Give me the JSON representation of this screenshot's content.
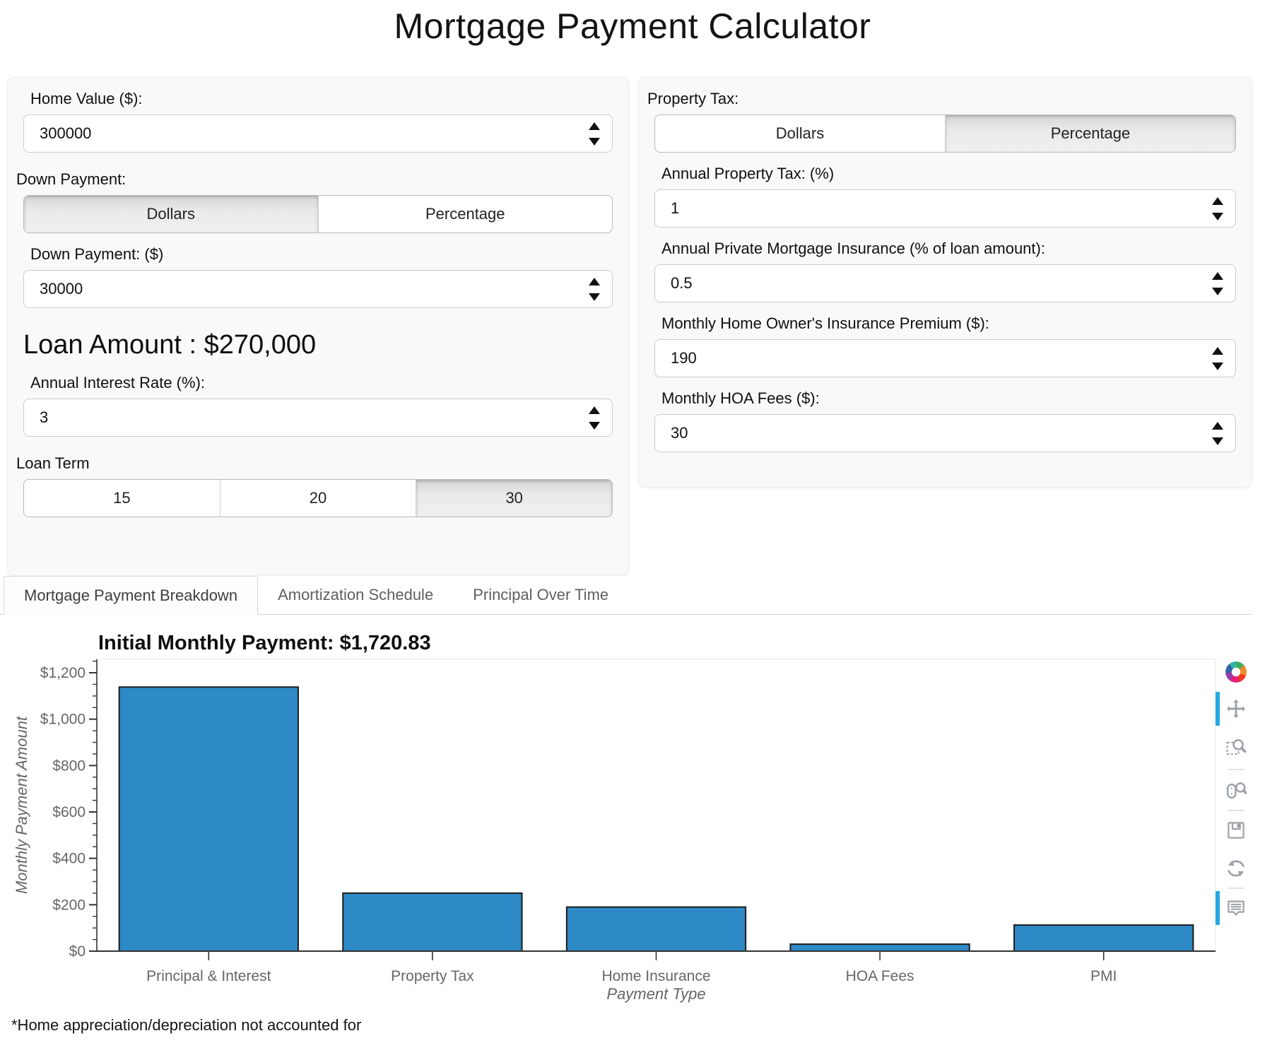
{
  "page": {
    "title": "Mortgage Payment Calculator",
    "footnote": "*Home appreciation/depreciation not accounted for"
  },
  "left_panel": {
    "home_value_label": "Home Value ($):",
    "home_value": "300000",
    "down_payment_section_label": "Down Payment:",
    "down_payment_mode": {
      "options": [
        "Dollars",
        "Percentage"
      ],
      "selected": "Dollars"
    },
    "down_payment_label": "Down Payment: ($)",
    "down_payment": "30000",
    "loan_amount_text": "Loan Amount : $270,000",
    "interest_rate_label": "Annual Interest Rate (%):",
    "interest_rate": "3",
    "loan_term_label": "Loan Term",
    "loan_term": {
      "options": [
        "15",
        "20",
        "30"
      ],
      "selected": "30"
    }
  },
  "right_panel": {
    "property_tax_section_label": "Property Tax:",
    "property_tax_mode": {
      "options": [
        "Dollars",
        "Percentage"
      ],
      "selected": "Percentage"
    },
    "annual_property_tax_label": "Annual Property Tax: (%)",
    "annual_property_tax": "1",
    "pmi_label": "Annual Private Mortgage Insurance (% of loan amount):",
    "pmi": "0.5",
    "home_insurance_label": "Monthly Home Owner's Insurance Premium ($):",
    "home_insurance": "190",
    "hoa_label": "Monthly HOA Fees ($):",
    "hoa": "30"
  },
  "tabs": {
    "items": [
      {
        "label": "Mortgage Payment Breakdown",
        "active": true
      },
      {
        "label": "Amortization Schedule",
        "active": false
      },
      {
        "label": "Principal Over Time",
        "active": false
      }
    ]
  },
  "chart_data": {
    "type": "bar",
    "title": "Initial Monthly Payment: $1,720.83",
    "categories": [
      "Principal & Interest",
      "Property Tax",
      "Home Insurance",
      "HOA Fees",
      "PMI"
    ],
    "values": [
      1138.33,
      250,
      190,
      30,
      112.5
    ],
    "xlabel": "Payment Type",
    "ylabel": "Monthly Payment Amount",
    "ylim": [
      0,
      1258
    ],
    "ytick_interval": 200,
    "yminor_interval": 50,
    "ytick_prefix": "$",
    "bar_color": "#2e8ac6",
    "bar_outline": "#1c1c1c",
    "axis_color": "#333333",
    "tick_label_color": "#666666",
    "frame_color": "#e5e5e5",
    "grid": false,
    "legend": "none"
  },
  "toolbar": {
    "active_color": "#28a9e0",
    "icon_color": "#9da3a9",
    "tools": [
      {
        "icon": "bokeh-logo",
        "active": false
      },
      {
        "icon": "pan",
        "active": true
      },
      {
        "icon": "box-zoom",
        "active": false
      },
      {
        "icon": "separator"
      },
      {
        "icon": "wheel-zoom",
        "active": false
      },
      {
        "icon": "separator"
      },
      {
        "icon": "save",
        "active": false
      },
      {
        "icon": "reset",
        "active": false
      },
      {
        "icon": "separator"
      },
      {
        "icon": "hover",
        "active": true
      }
    ]
  }
}
